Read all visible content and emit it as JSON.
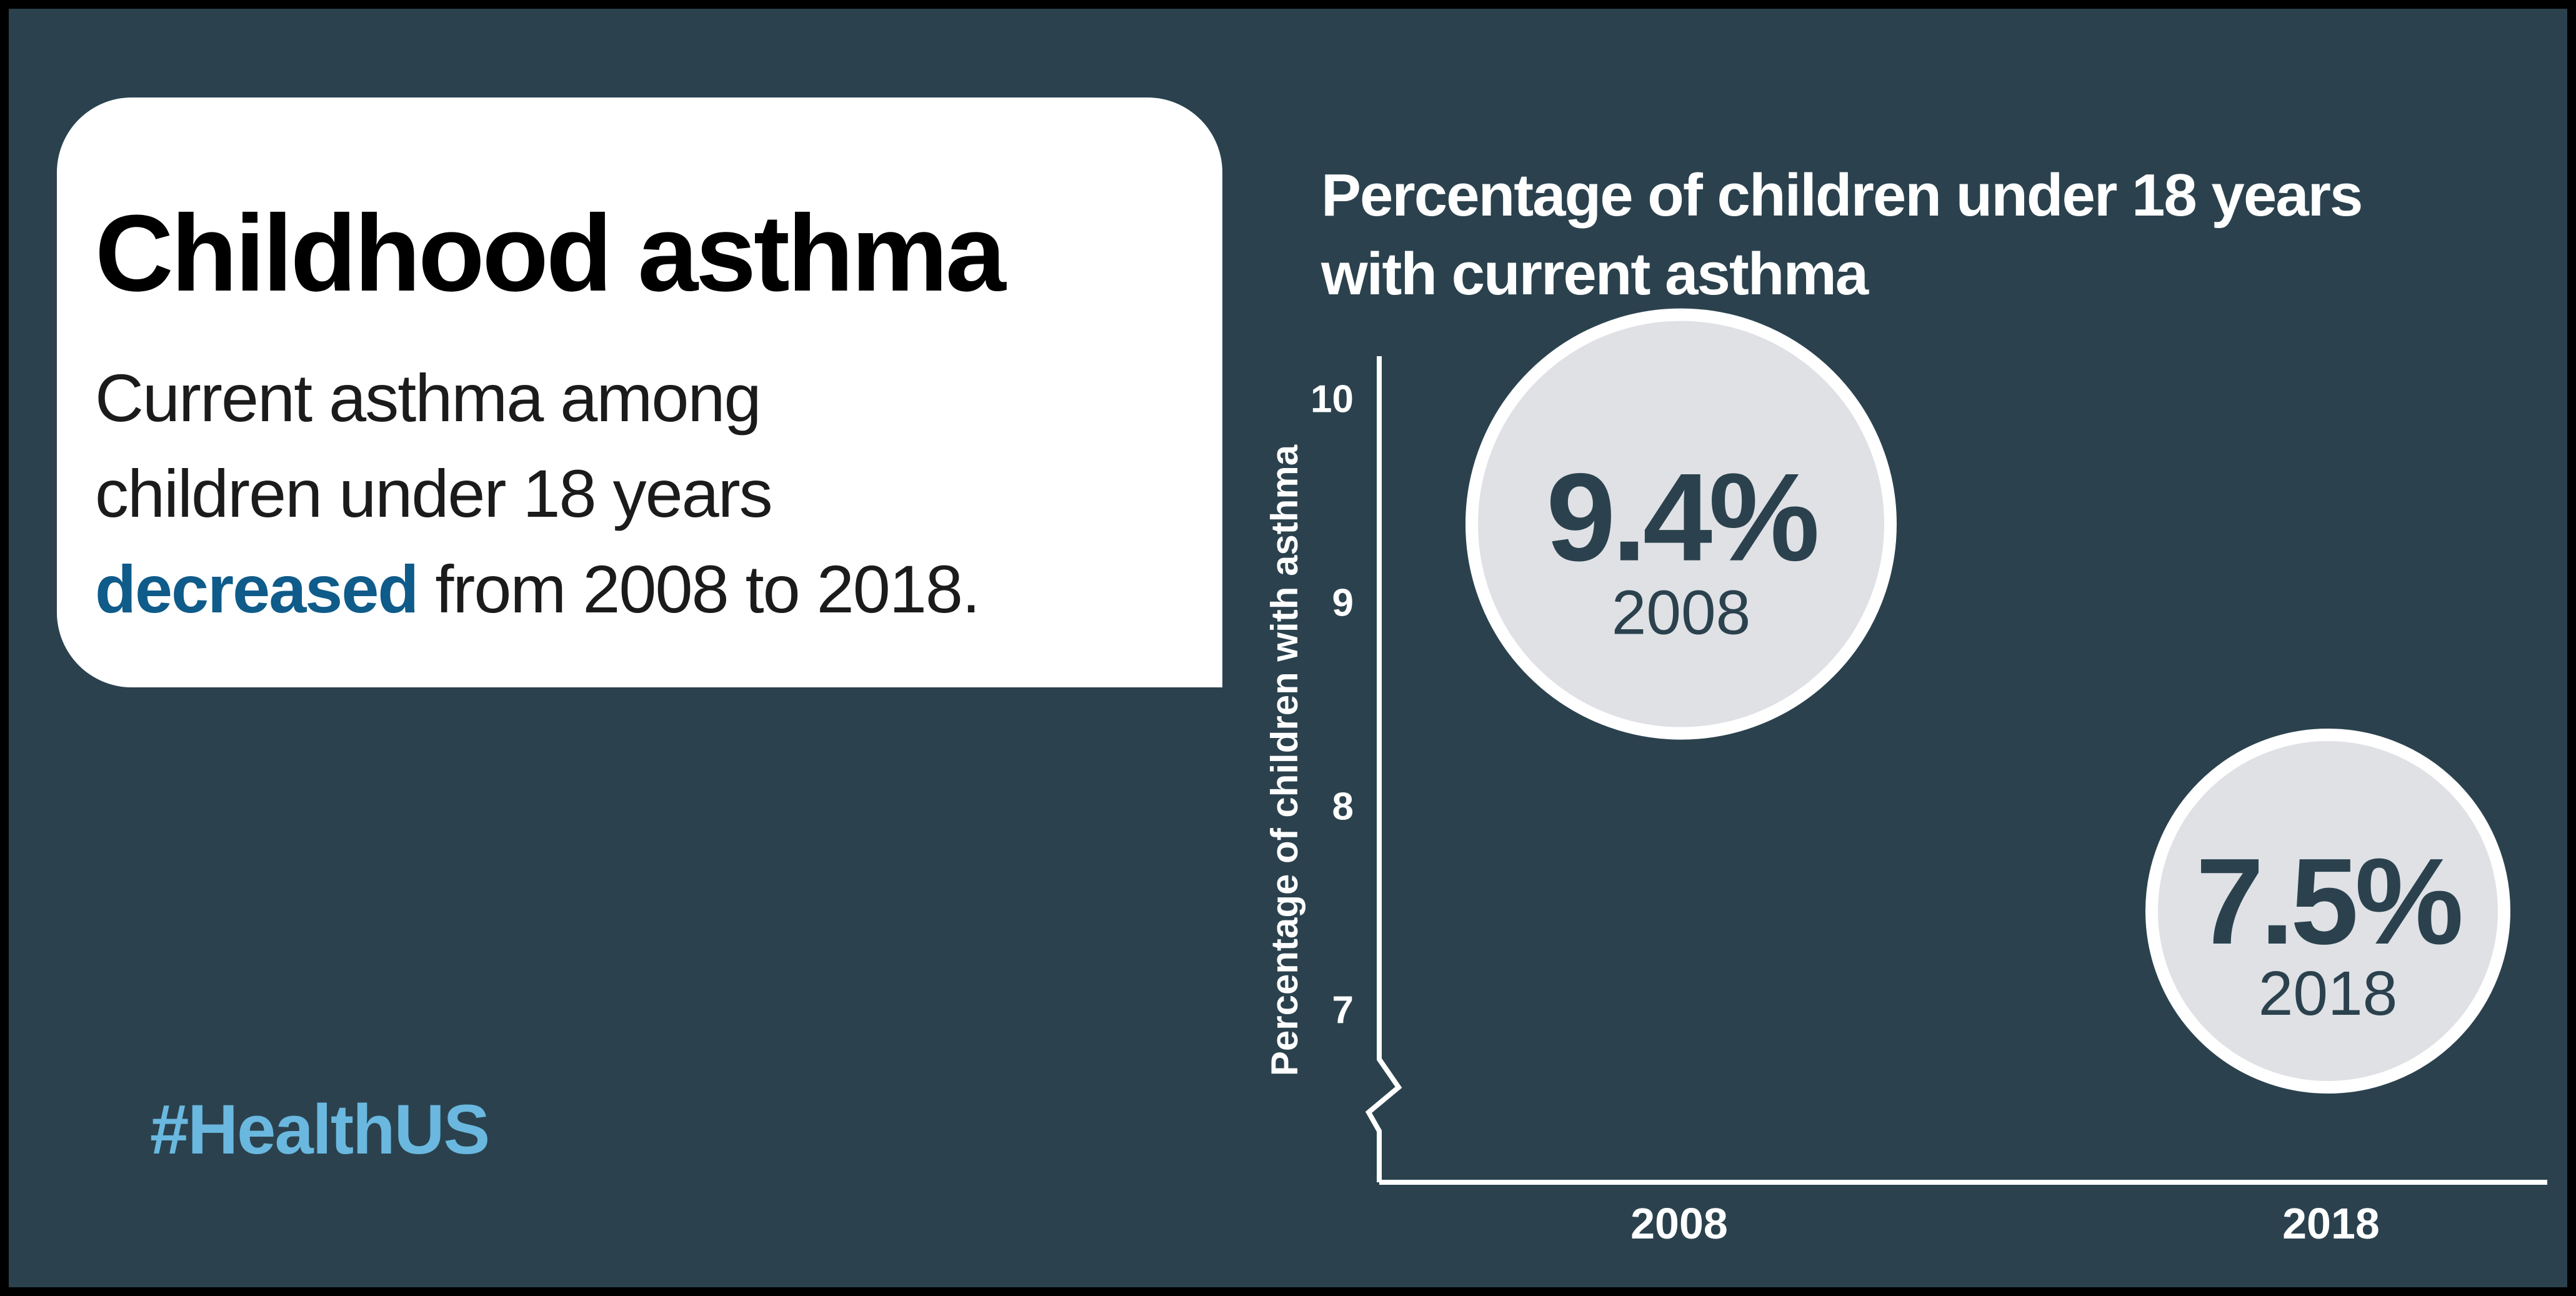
{
  "card": {
    "title": "Childhood asthma",
    "body_line1": "Current asthma among",
    "body_line2": "children under 18 years",
    "body_keyword": "decreased",
    "body_line3_rest": " from 2008 to 2018."
  },
  "hashtag": "#HealthUS",
  "colors": {
    "background": "#2b424e",
    "card": "#ffffff",
    "keyword": "#0f5b8a",
    "hashtag": "#6ab8df",
    "bubble_fill": "#dfe1e5",
    "bubble_stroke": "#ffffff"
  },
  "chart_data": {
    "type": "scatter",
    "title": "Percentage of children under 18 years with current asthma",
    "ylabel": "Percentage of children with asthma",
    "xlabel": "",
    "categories": [
      "2008",
      "2018"
    ],
    "y_ticks": [
      7,
      8,
      9,
      10
    ],
    "ylim": [
      6.5,
      10.3
    ],
    "axis_break": true,
    "points": [
      {
        "x": "2008",
        "y": 9.4,
        "label": "9.4%"
      },
      {
        "x": "2018",
        "y": 7.5,
        "label": "7.5%"
      }
    ]
  }
}
